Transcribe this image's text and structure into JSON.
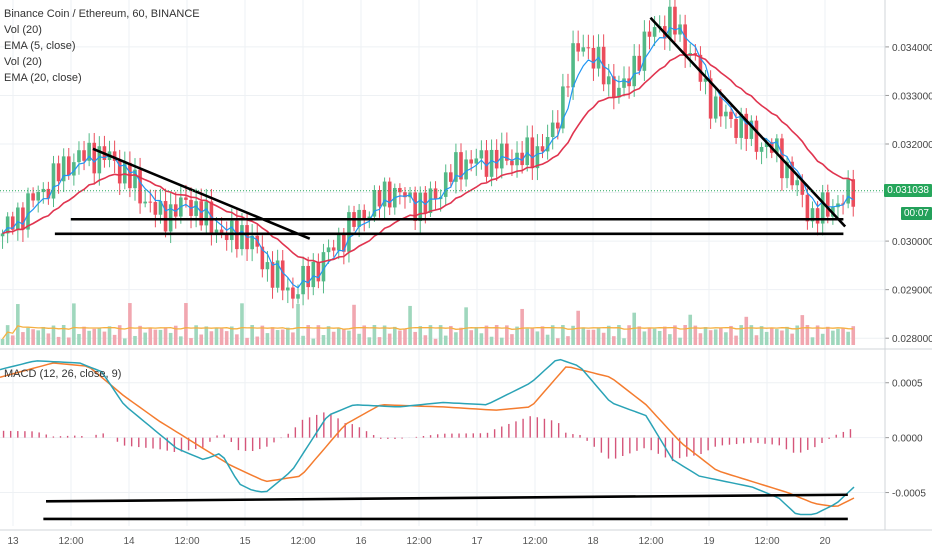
{
  "header": {
    "title": "Binance Coin / Ethereum, 60, BINANCE",
    "indicators": [
      "Vol (20)",
      "EMA (5, close)",
      "Vol (20)",
      "EMA (20, close)"
    ]
  },
  "price_tags": {
    "last_price": "0.031038",
    "countdown": "00:07"
  },
  "macd_legend": "MACD (12, 26, close, 9)",
  "colors": {
    "up": "#53b987",
    "down": "#eb4d5c",
    "ema_fast": "#2196f3",
    "ema_slow": "#e0344f",
    "volume_ma": "#f5b041",
    "macd_line": "#2aa3b6",
    "signal_line": "#f47c2f",
    "histogram": "#d5557a",
    "last_price": "#26a65b",
    "countdown": "#23a05a"
  },
  "chart_data": [
    {
      "type": "candlestick",
      "title": "Binance Coin / Ethereum, 60, BINANCE",
      "y_ticks": [
        "0.034000",
        "0.033000",
        "0.032000",
        "0.031000",
        "0.030000",
        "0.029000",
        "0.028000"
      ],
      "ylim": [
        0.02786,
        0.03476
      ],
      "x_ticks": [
        "13",
        "12:00",
        "14",
        "12:00",
        "15",
        "12:00",
        "16",
        "12:00",
        "17",
        "12:00",
        "18",
        "12:00",
        "19",
        "12:00",
        "20"
      ],
      "close_path": {
        "t": [
          0,
          0.04,
          0.08,
          0.105,
          0.125,
          0.15,
          0.18,
          0.215,
          0.235,
          0.26,
          0.275,
          0.3,
          0.33,
          0.36,
          0.4,
          0.44,
          0.48,
          0.52,
          0.56,
          0.6,
          0.625,
          0.645,
          0.66,
          0.69,
          0.705,
          0.72,
          0.74,
          0.76,
          0.78,
          0.8,
          0.815,
          0.835,
          0.86,
          0.88,
          0.9,
          0.918,
          0.935,
          0.95,
          0.965
        ],
        "price": [
          0.0301,
          0.0309,
          0.03165,
          0.0318,
          0.0317,
          0.0312,
          0.0305,
          0.0308,
          0.0304,
          0.03005,
          0.0302,
          0.0295,
          0.0289,
          0.0295,
          0.0304,
          0.03105,
          0.0307,
          0.0316,
          0.0317,
          0.03175,
          0.0322,
          0.0337,
          0.0341,
          0.0332,
          0.0331,
          0.0338,
          0.0344,
          0.0345,
          0.0339,
          0.033,
          0.0326,
          0.0324,
          0.032,
          0.0318,
          0.0311,
          0.0305,
          0.0307,
          0.0308,
          0.03104
        ]
      },
      "series": [
        {
          "name": "EMA (5, close)",
          "kind": "line"
        },
        {
          "name": "EMA (20, close)",
          "kind": "line"
        },
        {
          "name": "Vol (20)",
          "kind": "bar"
        }
      ],
      "trendlines": [
        {
          "from": [
            0.105,
            0.0319
          ],
          "to": [
            0.35,
            0.03005
          ]
        },
        {
          "from": [
            0.735,
            0.0346
          ],
          "to": [
            0.955,
            0.0303
          ]
        },
        {
          "from": [
            0.08,
            0.03045
          ],
          "to": [
            0.953,
            0.03045
          ]
        },
        {
          "from": [
            0.062,
            0.03015
          ],
          "to": [
            0.953,
            0.03015
          ]
        }
      ],
      "last_price": 0.031038,
      "grid": true
    },
    {
      "type": "line",
      "title": "MACD (12, 26, close, 9)",
      "y_ticks": [
        "0.0005",
        "0.0000",
        "-0.0005"
      ],
      "ylim": [
        -0.00075,
        0.00078
      ],
      "series": [
        {
          "name": "MACD",
          "kind": "line",
          "t": [
            0,
            0.04,
            0.09,
            0.115,
            0.14,
            0.17,
            0.2,
            0.23,
            0.25,
            0.27,
            0.285,
            0.3,
            0.33,
            0.37,
            0.4,
            0.45,
            0.5,
            0.55,
            0.6,
            0.63,
            0.655,
            0.69,
            0.73,
            0.76,
            0.79,
            0.82,
            0.85,
            0.88,
            0.9,
            0.92,
            0.945,
            0.965
          ],
          "value": [
            0.00062,
            0.0007,
            0.00068,
            0.0006,
            0.0003,
            0.0001,
            -0.0001,
            -0.0002,
            -0.00014,
            -0.00042,
            -0.00048,
            -0.0005,
            -0.0003,
            0.0002,
            0.0003,
            0.00028,
            0.00032,
            0.0003,
            0.0005,
            0.00072,
            0.00065,
            0.00032,
            0.0002,
            -0.0002,
            -0.00035,
            -0.0004,
            -0.00045,
            -0.00055,
            -0.0007,
            -0.0007,
            -0.0006,
            -0.00045
          ]
        },
        {
          "name": "Signal",
          "kind": "line",
          "t": [
            0,
            0.06,
            0.1,
            0.14,
            0.18,
            0.22,
            0.26,
            0.3,
            0.34,
            0.39,
            0.43,
            0.5,
            0.56,
            0.6,
            0.64,
            0.69,
            0.73,
            0.77,
            0.81,
            0.85,
            0.89,
            0.92,
            0.945,
            0.965
          ],
          "value": [
            0.00055,
            0.00068,
            0.00065,
            0.00038,
            0.00015,
            -5e-05,
            -0.00025,
            -0.0004,
            -0.00035,
            0.00012,
            0.0003,
            0.00028,
            0.00025,
            0.00028,
            0.00065,
            0.00055,
            0.0003,
            -5e-05,
            -0.0003,
            -0.0004,
            -0.0005,
            -0.0006,
            -0.00063,
            -0.00055
          ]
        },
        {
          "name": "Histogram",
          "kind": "bar"
        }
      ],
      "trendlines": [
        {
          "from": [
            0.052,
            -0.00058
          ],
          "to": [
            0.958,
            -0.00052
          ]
        },
        {
          "from": [
            0.049,
            -0.00074
          ],
          "to": [
            0.958,
            -0.00074
          ]
        }
      ],
      "grid": true
    }
  ]
}
